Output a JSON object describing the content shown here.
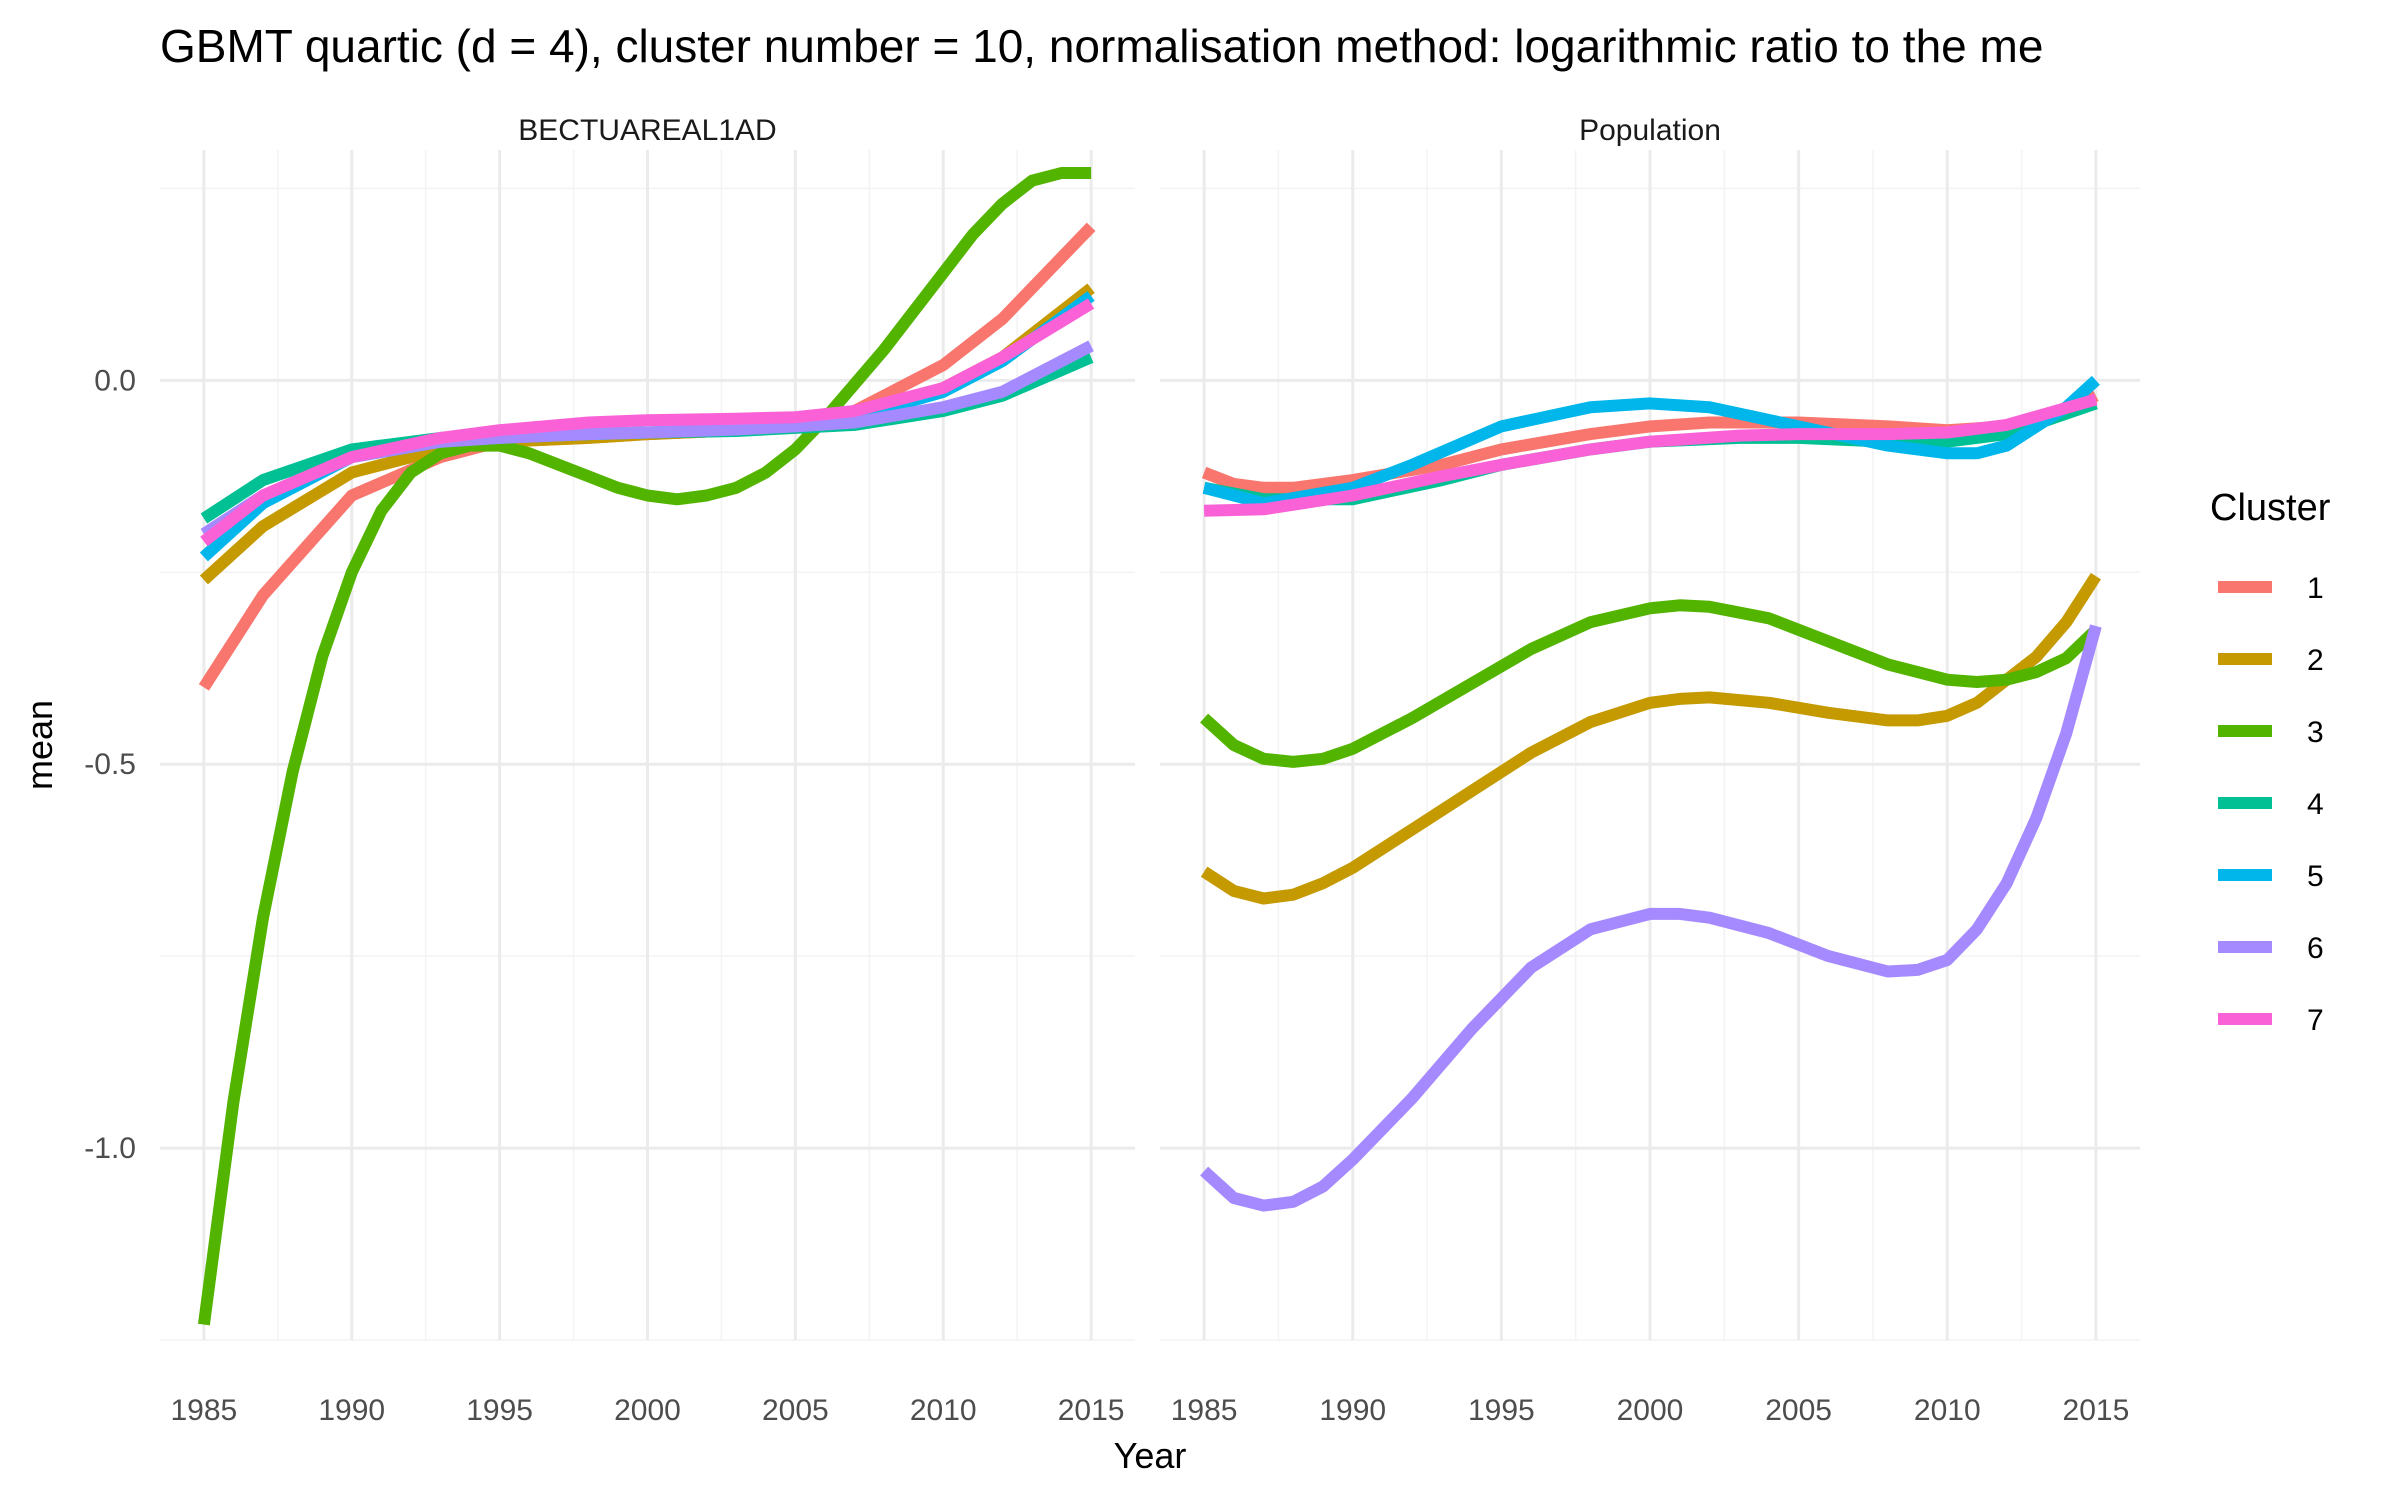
{
  "chart_data": {
    "type": "line",
    "title": "GBMT quartic (d = 4), cluster number = 10, normalisation method: logarithmic ratio to the me",
    "xlabel": "Year",
    "ylabel": "mean",
    "xlim": [
      1985,
      2015
    ],
    "ylim": [
      -1.25,
      0.3
    ],
    "x_ticks": [
      1985,
      1990,
      1995,
      2000,
      2005,
      2010,
      2015
    ],
    "x_tick_labels": [
      "1985",
      "1990",
      "1995",
      "2000",
      "2005",
      "2010",
      "2015"
    ],
    "y_ticks": [
      -1.0,
      -0.5,
      0.0
    ],
    "y_tick_labels": [
      "-1.0",
      "-0.5",
      "0.0"
    ],
    "grid": true,
    "legend": {
      "title": "Cluster",
      "position": "right",
      "entries": [
        {
          "label": "1",
          "color": "#F8766D"
        },
        {
          "label": "2",
          "color": "#C49A00"
        },
        {
          "label": "3",
          "color": "#53B400"
        },
        {
          "label": "4",
          "color": "#00C094"
        },
        {
          "label": "5",
          "color": "#00B6EB"
        },
        {
          "label": "6",
          "color": "#A58AFF"
        },
        {
          "label": "7",
          "color": "#FB61D7"
        }
      ]
    },
    "panels": [
      {
        "name": "BECTUAREAL1AD",
        "series": [
          {
            "name": "1",
            "x": [
              1985,
              1987,
              1990,
              1993,
              1995,
              1998,
              2000,
              2003,
              2005,
              2007,
              2010,
              2012,
              2015
            ],
            "y": [
              -0.4,
              -0.28,
              -0.15,
              -0.1,
              -0.08,
              -0.075,
              -0.07,
              -0.065,
              -0.055,
              -0.04,
              0.02,
              0.08,
              0.2
            ]
          },
          {
            "name": "2",
            "x": [
              1985,
              1987,
              1990,
              1993,
              1995,
              1998,
              2000,
              2003,
              2005,
              2007,
              2010,
              2012,
              2015
            ],
            "y": [
              -0.26,
              -0.19,
              -0.12,
              -0.09,
              -0.08,
              -0.075,
              -0.07,
              -0.065,
              -0.055,
              -0.045,
              -0.01,
              0.03,
              0.12
            ]
          },
          {
            "name": "3",
            "x": [
              1985,
              1986,
              1987,
              1988,
              1989,
              1990,
              1991,
              1992,
              1993,
              1994,
              1995,
              1996,
              1997,
              1998,
              1999,
              2000,
              2001,
              2002,
              2003,
              2004,
              2005,
              2006,
              2007,
              2008,
              2009,
              2010,
              2011,
              2012,
              2013,
              2014,
              2015
            ],
            "y": [
              -1.23,
              -0.94,
              -0.7,
              -0.51,
              -0.36,
              -0.25,
              -0.17,
              -0.12,
              -0.095,
              -0.085,
              -0.085,
              -0.095,
              -0.11,
              -0.125,
              -0.14,
              -0.15,
              -0.155,
              -0.15,
              -0.14,
              -0.12,
              -0.09,
              -0.05,
              -0.005,
              0.04,
              0.09,
              0.14,
              0.19,
              0.23,
              0.26,
              0.27,
              0.27
            ]
          },
          {
            "name": "4",
            "x": [
              1985,
              1987,
              1990,
              1993,
              1995,
              1998,
              2000,
              2003,
              2005,
              2007,
              2010,
              2012,
              2015
            ],
            "y": [
              -0.18,
              -0.13,
              -0.09,
              -0.075,
              -0.07,
              -0.07,
              -0.068,
              -0.066,
              -0.062,
              -0.058,
              -0.04,
              -0.02,
              0.03
            ]
          },
          {
            "name": "5",
            "x": [
              1985,
              1987,
              1990,
              1993,
              1995,
              1998,
              2000,
              2003,
              2005,
              2007,
              2010,
              2012,
              2015
            ],
            "y": [
              -0.23,
              -0.16,
              -0.1,
              -0.08,
              -0.075,
              -0.07,
              -0.068,
              -0.064,
              -0.058,
              -0.048,
              -0.015,
              0.025,
              0.11
            ]
          },
          {
            "name": "6",
            "x": [
              1985,
              1987,
              1990,
              1993,
              1995,
              1998,
              2000,
              2003,
              2005,
              2007,
              2010,
              2012,
              2015
            ],
            "y": [
              -0.2,
              -0.15,
              -0.1,
              -0.08,
              -0.075,
              -0.07,
              -0.068,
              -0.064,
              -0.06,
              -0.055,
              -0.035,
              -0.015,
              0.045
            ]
          },
          {
            "name": "7",
            "x": [
              1985,
              1987,
              1990,
              1993,
              1995,
              1998,
              2000,
              2003,
              2005,
              2007,
              2010,
              2012,
              2015
            ],
            "y": [
              -0.21,
              -0.15,
              -0.1,
              -0.075,
              -0.065,
              -0.055,
              -0.052,
              -0.05,
              -0.048,
              -0.04,
              -0.01,
              0.03,
              0.1
            ]
          }
        ]
      },
      {
        "name": "Population",
        "series": [
          {
            "name": "1",
            "x": [
              1985,
              1986,
              1987,
              1988,
              1990,
              1993,
              1995,
              1998,
              2000,
              2002,
              2005,
              2008,
              2010,
              2012,
              2014,
              2015
            ],
            "y": [
              -0.12,
              -0.135,
              -0.14,
              -0.14,
              -0.13,
              -0.11,
              -0.09,
              -0.07,
              -0.06,
              -0.055,
              -0.055,
              -0.06,
              -0.065,
              -0.06,
              -0.04,
              -0.02
            ]
          },
          {
            "name": "2",
            "x": [
              1985,
              1986,
              1987,
              1988,
              1989,
              1990,
              1992,
              1994,
              1996,
              1998,
              2000,
              2001,
              2002,
              2004,
              2006,
              2008,
              2009,
              2010,
              2011,
              2012,
              2013,
              2014,
              2015
            ],
            "y": [
              -0.64,
              -0.665,
              -0.675,
              -0.67,
              -0.655,
              -0.635,
              -0.585,
              -0.535,
              -0.485,
              -0.445,
              -0.42,
              -0.415,
              -0.413,
              -0.42,
              -0.433,
              -0.443,
              -0.443,
              -0.437,
              -0.42,
              -0.39,
              -0.36,
              -0.315,
              -0.255
            ]
          },
          {
            "name": "3",
            "x": [
              1985,
              1986,
              1987,
              1988,
              1989,
              1990,
              1992,
              1994,
              1996,
              1998,
              2000,
              2001,
              2002,
              2004,
              2006,
              2008,
              2010,
              2011,
              2012,
              2013,
              2014,
              2015
            ],
            "y": [
              -0.44,
              -0.475,
              -0.493,
              -0.497,
              -0.493,
              -0.48,
              -0.44,
              -0.395,
              -0.35,
              -0.315,
              -0.297,
              -0.293,
              -0.295,
              -0.31,
              -0.34,
              -0.37,
              -0.39,
              -0.393,
              -0.39,
              -0.38,
              -0.362,
              -0.325
            ]
          },
          {
            "name": "4",
            "x": [
              1985,
              1987,
              1990,
              1993,
              1995,
              1998,
              2000,
              2003,
              2005,
              2008,
              2010,
              2012,
              2015
            ],
            "y": [
              -0.14,
              -0.155,
              -0.155,
              -0.13,
              -0.11,
              -0.09,
              -0.08,
              -0.075,
              -0.075,
              -0.08,
              -0.08,
              -0.07,
              -0.03
            ]
          },
          {
            "name": "5",
            "x": [
              1985,
              1987,
              1990,
              1992,
              1995,
              1998,
              2000,
              2002,
              2005,
              2008,
              2010,
              2011,
              2012,
              2013,
              2014,
              2015
            ],
            "y": [
              -0.14,
              -0.16,
              -0.14,
              -0.11,
              -0.06,
              -0.035,
              -0.03,
              -0.035,
              -0.06,
              -0.085,
              -0.095,
              -0.095,
              -0.085,
              -0.06,
              -0.035,
              0.0
            ]
          },
          {
            "name": "6",
            "x": [
              1985,
              1986,
              1987,
              1988,
              1989,
              1990,
              1992,
              1994,
              1996,
              1998,
              2000,
              2001,
              2002,
              2004,
              2006,
              2008,
              2009,
              2010,
              2011,
              2012,
              2013,
              2014,
              2015
            ],
            "y": [
              -1.03,
              -1.065,
              -1.075,
              -1.07,
              -1.05,
              -1.015,
              -0.935,
              -0.845,
              -0.765,
              -0.715,
              -0.695,
              -0.695,
              -0.7,
              -0.72,
              -0.75,
              -0.77,
              -0.768,
              -0.755,
              -0.715,
              -0.655,
              -0.57,
              -0.46,
              -0.32
            ]
          },
          {
            "name": "7",
            "x": [
              1985,
              1987,
              1990,
              1993,
              1995,
              1998,
              2000,
              2003,
              2005,
              2008,
              2010,
              2012,
              2015
            ],
            "y": [
              -0.17,
              -0.168,
              -0.15,
              -0.125,
              -0.11,
              -0.09,
              -0.08,
              -0.072,
              -0.07,
              -0.07,
              -0.068,
              -0.058,
              -0.025
            ]
          }
        ]
      }
    ]
  }
}
